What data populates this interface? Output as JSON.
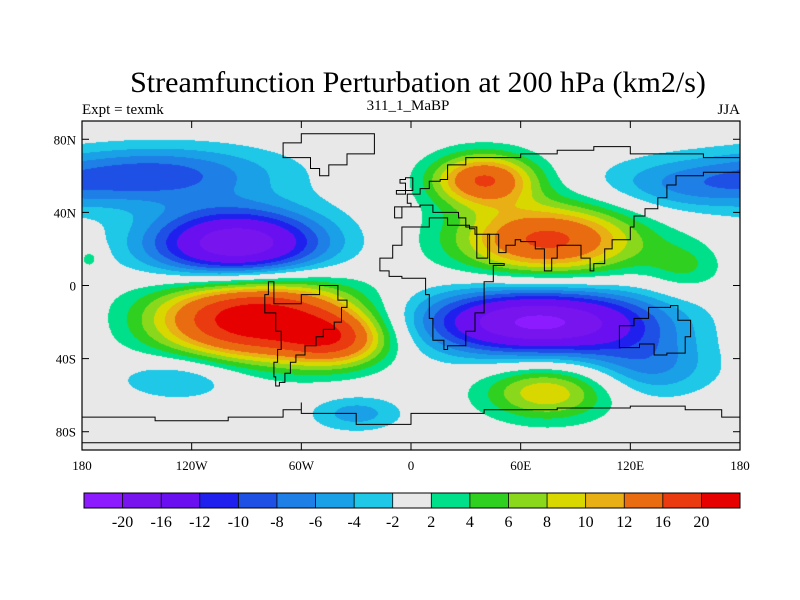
{
  "chart_data": {
    "type": "heatmap",
    "title": "Streamfunction Perturbation at 200 hPa (km2/s)",
    "left_label": "Expt = texmk",
    "center_label": "311_1_MaBP",
    "right_label": "JJA",
    "x_ticks": [
      {
        "value": -180,
        "label": "180"
      },
      {
        "value": -120,
        "label": "120W"
      },
      {
        "value": -60,
        "label": "60W"
      },
      {
        "value": 0,
        "label": "0"
      },
      {
        "value": 60,
        "label": "60E"
      },
      {
        "value": 120,
        "label": "120E"
      },
      {
        "value": 180,
        "label": "180"
      }
    ],
    "y_ticks": [
      {
        "value": 80,
        "label": "80N"
      },
      {
        "value": 40,
        "label": "40N"
      },
      {
        "value": 0,
        "label": "0"
      },
      {
        "value": -40,
        "label": "40S"
      },
      {
        "value": -80,
        "label": "80S"
      }
    ],
    "xlim": [
      -180,
      180
    ],
    "ylim": [
      -90,
      90
    ],
    "levels": [
      -20,
      -16,
      -12,
      -10,
      -8,
      -6,
      -4,
      -2,
      2,
      4,
      6,
      8,
      10,
      12,
      16,
      20
    ],
    "level_labels": [
      "-20",
      "-16",
      "-12",
      "-10",
      "-8",
      "-6",
      "-4",
      "-2",
      "2",
      "4",
      "6",
      "8",
      "10",
      "12",
      "16",
      "20"
    ],
    "colors": [
      "#8c1cff",
      "#7814ee",
      "#6a10f0",
      "#2020ee",
      "#1e50e6",
      "#1e7fe6",
      "#1aa0e6",
      "#1ec8e6",
      "#e8e8e8",
      "#00e08a",
      "#30d020",
      "#8ad81c",
      "#d8d800",
      "#e8b014",
      "#ea6c10",
      "#ea3a10",
      "#e60000"
    ],
    "anomalies": [
      {
        "lon": -95,
        "lat": 22,
        "value": -20,
        "rlon": 34,
        "rlat": 14
      },
      {
        "lon": -85,
        "lat": -18,
        "value": 24,
        "rlon": 38,
        "rlat": 16
      },
      {
        "lon": -40,
        "lat": -30,
        "value": 12,
        "rlon": 20,
        "rlat": 10
      },
      {
        "lon": 70,
        "lat": -20,
        "value": -21,
        "rlon": 45,
        "rlat": 13
      },
      {
        "lon": 75,
        "lat": 25,
        "value": 17,
        "rlon": 35,
        "rlat": 14
      },
      {
        "lon": 40,
        "lat": 58,
        "value": 16,
        "rlon": 20,
        "rlat": 10
      },
      {
        "lon": 75,
        "lat": -58,
        "value": 10,
        "rlon": 25,
        "rlat": 11
      },
      {
        "lon": -150,
        "lat": 60,
        "value": -6,
        "rlon": 35,
        "rlat": 11
      },
      {
        "lon": -110,
        "lat": 62,
        "value": -4,
        "rlon": 40,
        "rlat": 11
      },
      {
        "lon": 150,
        "lat": 55,
        "value": -6,
        "rlon": 35,
        "rlat": 11
      },
      {
        "lon": 130,
        "lat": -45,
        "value": -6,
        "rlon": 25,
        "rlat": 12
      },
      {
        "lon": -125,
        "lat": -50,
        "value": -5,
        "rlon": 25,
        "rlat": 9
      },
      {
        "lon": -30,
        "lat": -70,
        "value": -5,
        "rlon": 18,
        "rlat": 7
      },
      {
        "lon": 150,
        "lat": 10,
        "value": 4,
        "rlon": 15,
        "rlat": 10
      },
      {
        "lon": -175,
        "lat": 15,
        "value": 3,
        "rlon": 5,
        "rlat": 5
      }
    ]
  }
}
